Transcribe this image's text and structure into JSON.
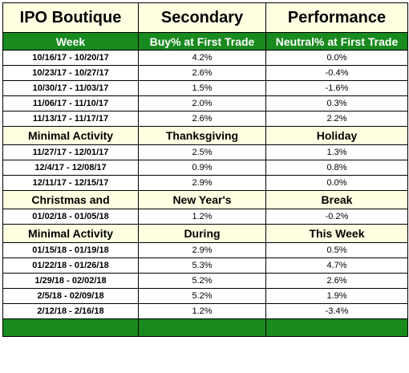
{
  "title_row": [
    "IPO Boutique",
    "Secondary",
    "Performance"
  ],
  "header_row": [
    "Week",
    "Buy% at First Trade",
    "Neutral% at First Trade"
  ],
  "blocks": [
    {
      "type": "data",
      "cells": [
        "10/16/17 - 10/20/17",
        "4.2%",
        "0.0%"
      ]
    },
    {
      "type": "data",
      "cells": [
        "10/23/17 - 10/27/17",
        "2.6%",
        "-0.4%"
      ]
    },
    {
      "type": "data",
      "cells": [
        "10/30/17 - 11/03/17",
        "1.5%",
        "-1.6%"
      ]
    },
    {
      "type": "data",
      "cells": [
        "11/06/17 - 11/10/17",
        "2.0%",
        "0.3%"
      ]
    },
    {
      "type": "data",
      "cells": [
        "11/13/17 - 11/17/17",
        "2.6%",
        "2.2%"
      ]
    },
    {
      "type": "note",
      "cells": [
        "Minimal Activity",
        "Thanksgiving",
        "Holiday"
      ]
    },
    {
      "type": "data",
      "cells": [
        "11/27/17 - 12/01/17",
        "2.5%",
        "1.3%"
      ]
    },
    {
      "type": "data",
      "cells": [
        "12/4/17 - 12/08/17",
        "0.9%",
        "0.8%"
      ]
    },
    {
      "type": "data",
      "cells": [
        "12/11/17 - 12/15/17",
        "2.9%",
        "0.0%"
      ]
    },
    {
      "type": "note",
      "cells": [
        "Christmas and",
        "New Year's",
        "Break"
      ]
    },
    {
      "type": "data",
      "cells": [
        "01/02/18 - 01/05/18",
        "1.2%",
        "-0.2%"
      ]
    },
    {
      "type": "note",
      "cells": [
        "Minimal Activity",
        "During",
        "This Week"
      ]
    },
    {
      "type": "data",
      "cells": [
        "01/15/18 - 01/19/18",
        "2.9%",
        "0.5%"
      ]
    },
    {
      "type": "data",
      "cells": [
        "01/22/18 - 01/26/18",
        "5.3%",
        "4.7%"
      ]
    },
    {
      "type": "data",
      "cells": [
        "1/29/18 - 02/02/18",
        "5.2%",
        "2.6%"
      ]
    },
    {
      "type": "data",
      "cells": [
        "2/5/18 - 02/09/18",
        "5.2%",
        "1.9%"
      ]
    },
    {
      "type": "data",
      "cells": [
        "2/12/18 - 2/16/18",
        "1.2%",
        "-3.4%"
      ]
    }
  ],
  "colors": {
    "header_green": "#188a1e",
    "note_yellow": "#ffffe2"
  }
}
